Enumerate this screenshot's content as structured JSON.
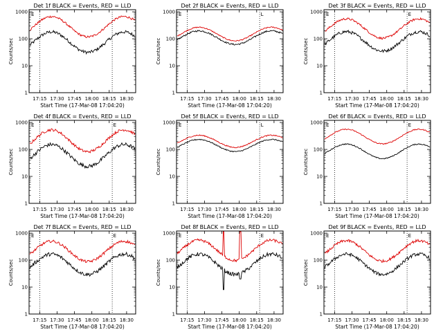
{
  "colors": {
    "events": "#000000",
    "lld": "#dd0000",
    "axes": "#000000"
  },
  "chart_data": [
    {
      "type": "line",
      "title": "Det 1f BLACK = Events, RED = LLD",
      "ylabel": "Counts/sec",
      "xlabel": "Start Time (17-Mar-08 17:04:20)",
      "x_ticks": [
        "17:15",
        "17:30",
        "17:45",
        "18:00",
        "18:15",
        "18:30"
      ],
      "y_ticks": [
        "1",
        "10",
        "100",
        "1000"
      ],
      "yscale": "log",
      "ylim": [
        1,
        1200
      ],
      "markers": [
        "E"
      ],
      "series": [
        {
          "name": "Events",
          "color": "#000000",
          "base": 75,
          "amp": 0.42,
          "noise": 0.06
        },
        {
          "name": "LLD",
          "color": "#dd0000",
          "base": 280,
          "amp": 0.42,
          "noise": 0.04
        }
      ]
    },
    {
      "type": "line",
      "title": "Det 2f BLACK = Events, RED = LLD",
      "ylabel": "Counts/sec",
      "xlabel": "Start Time (17-Mar-08 17:04:20)",
      "x_ticks": [
        "17:15",
        "17:30",
        "17:45",
        "18:00",
        "18:15",
        "18:30"
      ],
      "y_ticks": [
        "1",
        "10",
        "100",
        "1000"
      ],
      "yscale": "log",
      "ylim": [
        1,
        1200
      ],
      "markers": [
        "E",
        "L"
      ],
      "series": [
        {
          "name": "Events",
          "color": "#000000",
          "base": 110,
          "amp": 0.28,
          "noise": 0.03
        },
        {
          "name": "LLD",
          "color": "#dd0000",
          "base": 150,
          "amp": 0.28,
          "noise": 0.02
        }
      ]
    },
    {
      "type": "line",
      "title": "Det 3f BLACK = Events, RED = LLD",
      "ylabel": "Counts/sec",
      "xlabel": "Start Time (17-Mar-08 17:04:20)",
      "x_ticks": [
        "17:15",
        "17:30",
        "17:45",
        "18:00",
        "18:15",
        "18:30"
      ],
      "y_ticks": [
        "1",
        "10",
        "100",
        "1000"
      ],
      "yscale": "log",
      "ylim": [
        1,
        1200
      ],
      "markers": [
        "E",
        "E"
      ],
      "series": [
        {
          "name": "Events",
          "color": "#000000",
          "base": 80,
          "amp": 0.4,
          "noise": 0.06
        },
        {
          "name": "LLD",
          "color": "#dd0000",
          "base": 240,
          "amp": 0.4,
          "noise": 0.04
        }
      ]
    },
    {
      "type": "line",
      "title": "Det 4f BLACK = Events, RED = LLD",
      "ylabel": "Counts/sec",
      "xlabel": "Start Time (17-Mar-08 17:04:20)",
      "x_ticks": [
        "17:15",
        "17:30",
        "17:45",
        "18:00",
        "18:15",
        "18:30"
      ],
      "y_ticks": [
        "1",
        "10",
        "100",
        "1000"
      ],
      "yscale": "log",
      "ylim": [
        1,
        1200
      ],
      "markers": [
        "E",
        "E"
      ],
      "series": [
        {
          "name": "Events",
          "color": "#000000",
          "base": 60,
          "amp": 0.45,
          "noise": 0.07
        },
        {
          "name": "LLD",
          "color": "#dd0000",
          "base": 210,
          "amp": 0.45,
          "noise": 0.05
        }
      ]
    },
    {
      "type": "line",
      "title": "Det 5f BLACK = Events, RED = LLD",
      "ylabel": "Counts/sec",
      "xlabel": "Start Time (17-Mar-08 17:04:20)",
      "x_ticks": [
        "17:15",
        "17:30",
        "17:45",
        "18:00",
        "18:15",
        "18:30"
      ],
      "y_ticks": [
        "1",
        "10",
        "100",
        "1000"
      ],
      "yscale": "log",
      "ylim": [
        1,
        1200
      ],
      "markers": [
        "E",
        "L"
      ],
      "series": [
        {
          "name": "Events",
          "color": "#000000",
          "base": 140,
          "amp": 0.25,
          "noise": 0.02
        },
        {
          "name": "LLD",
          "color": "#dd0000",
          "base": 200,
          "amp": 0.25,
          "noise": 0.02
        }
      ]
    },
    {
      "type": "line",
      "title": "Det 6f BLACK = Events, RED = LLD",
      "ylabel": "Counts/sec",
      "xlabel": "Start Time (17-Mar-08 17:04:20)",
      "x_ticks": [
        "17:15",
        "17:30",
        "17:45",
        "18:00",
        "18:15",
        "18:30"
      ],
      "y_ticks": [
        "1",
        "10",
        "100",
        "1000"
      ],
      "yscale": "log",
      "ylim": [
        1,
        1200
      ],
      "markers": [
        "E",
        "E"
      ],
      "series": [
        {
          "name": "Events",
          "color": "#000000",
          "base": 85,
          "amp": 0.3,
          "noise": 0.02
        },
        {
          "name": "LLD",
          "color": "#dd0000",
          "base": 300,
          "amp": 0.3,
          "noise": 0.02
        }
      ]
    },
    {
      "type": "line",
      "title": "Det 7f BLACK = Events, RED = LLD",
      "ylabel": "Counts/sec",
      "xlabel": "Start Time (17-Mar-08 17:04:20)",
      "x_ticks": [
        "17:15",
        "17:30",
        "17:45",
        "18:00",
        "18:15",
        "18:30"
      ],
      "y_ticks": [
        "1",
        "10",
        "100",
        "1000"
      ],
      "yscale": "log",
      "ylim": [
        1,
        1200
      ],
      "markers": [
        "E",
        "E"
      ],
      "series": [
        {
          "name": "Events",
          "color": "#000000",
          "base": 70,
          "amp": 0.42,
          "noise": 0.07
        },
        {
          "name": "LLD",
          "color": "#dd0000",
          "base": 210,
          "amp": 0.42,
          "noise": 0.05
        }
      ]
    },
    {
      "type": "line",
      "title": "Det 8f BLACK = Events, RED = LLD",
      "ylabel": "Counts/sec",
      "xlabel": "Start Time (17-Mar-08 17:04:20)",
      "x_ticks": [
        "17:15",
        "17:30",
        "17:45",
        "18:00",
        "18:15",
        "18:30"
      ],
      "y_ticks": [
        "1",
        "10",
        "100",
        "1000"
      ],
      "yscale": "log",
      "ylim": [
        1,
        1200
      ],
      "markers": [
        "E",
        "E"
      ],
      "series": [
        {
          "name": "Events",
          "color": "#000000",
          "base": 70,
          "amp": 0.42,
          "noise": 0.07,
          "spikes": [
            [
              0.44,
              8
            ],
            [
              0.6,
              20
            ]
          ]
        },
        {
          "name": "LLD",
          "color": "#dd0000",
          "base": 230,
          "amp": 0.42,
          "noise": 0.05,
          "spikes": [
            [
              0.44,
              1400
            ],
            [
              0.6,
              1400
            ]
          ]
        }
      ]
    },
    {
      "type": "line",
      "title": "Det 9f BLACK = Events, RED = LLD",
      "ylabel": "Counts/sec",
      "xlabel": "Start Time (17-Mar-08 17:04:20)",
      "x_ticks": [
        "17:15",
        "17:30",
        "17:45",
        "18:00",
        "18:15",
        "18:30"
      ],
      "y_ticks": [
        "1",
        "10",
        "100",
        "1000"
      ],
      "yscale": "log",
      "ylim": [
        1,
        1200
      ],
      "markers": [
        "E",
        "E"
      ],
      "series": [
        {
          "name": "Events",
          "color": "#000000",
          "base": 70,
          "amp": 0.42,
          "noise": 0.06
        },
        {
          "name": "LLD",
          "color": "#dd0000",
          "base": 220,
          "amp": 0.42,
          "noise": 0.05
        }
      ]
    }
  ]
}
